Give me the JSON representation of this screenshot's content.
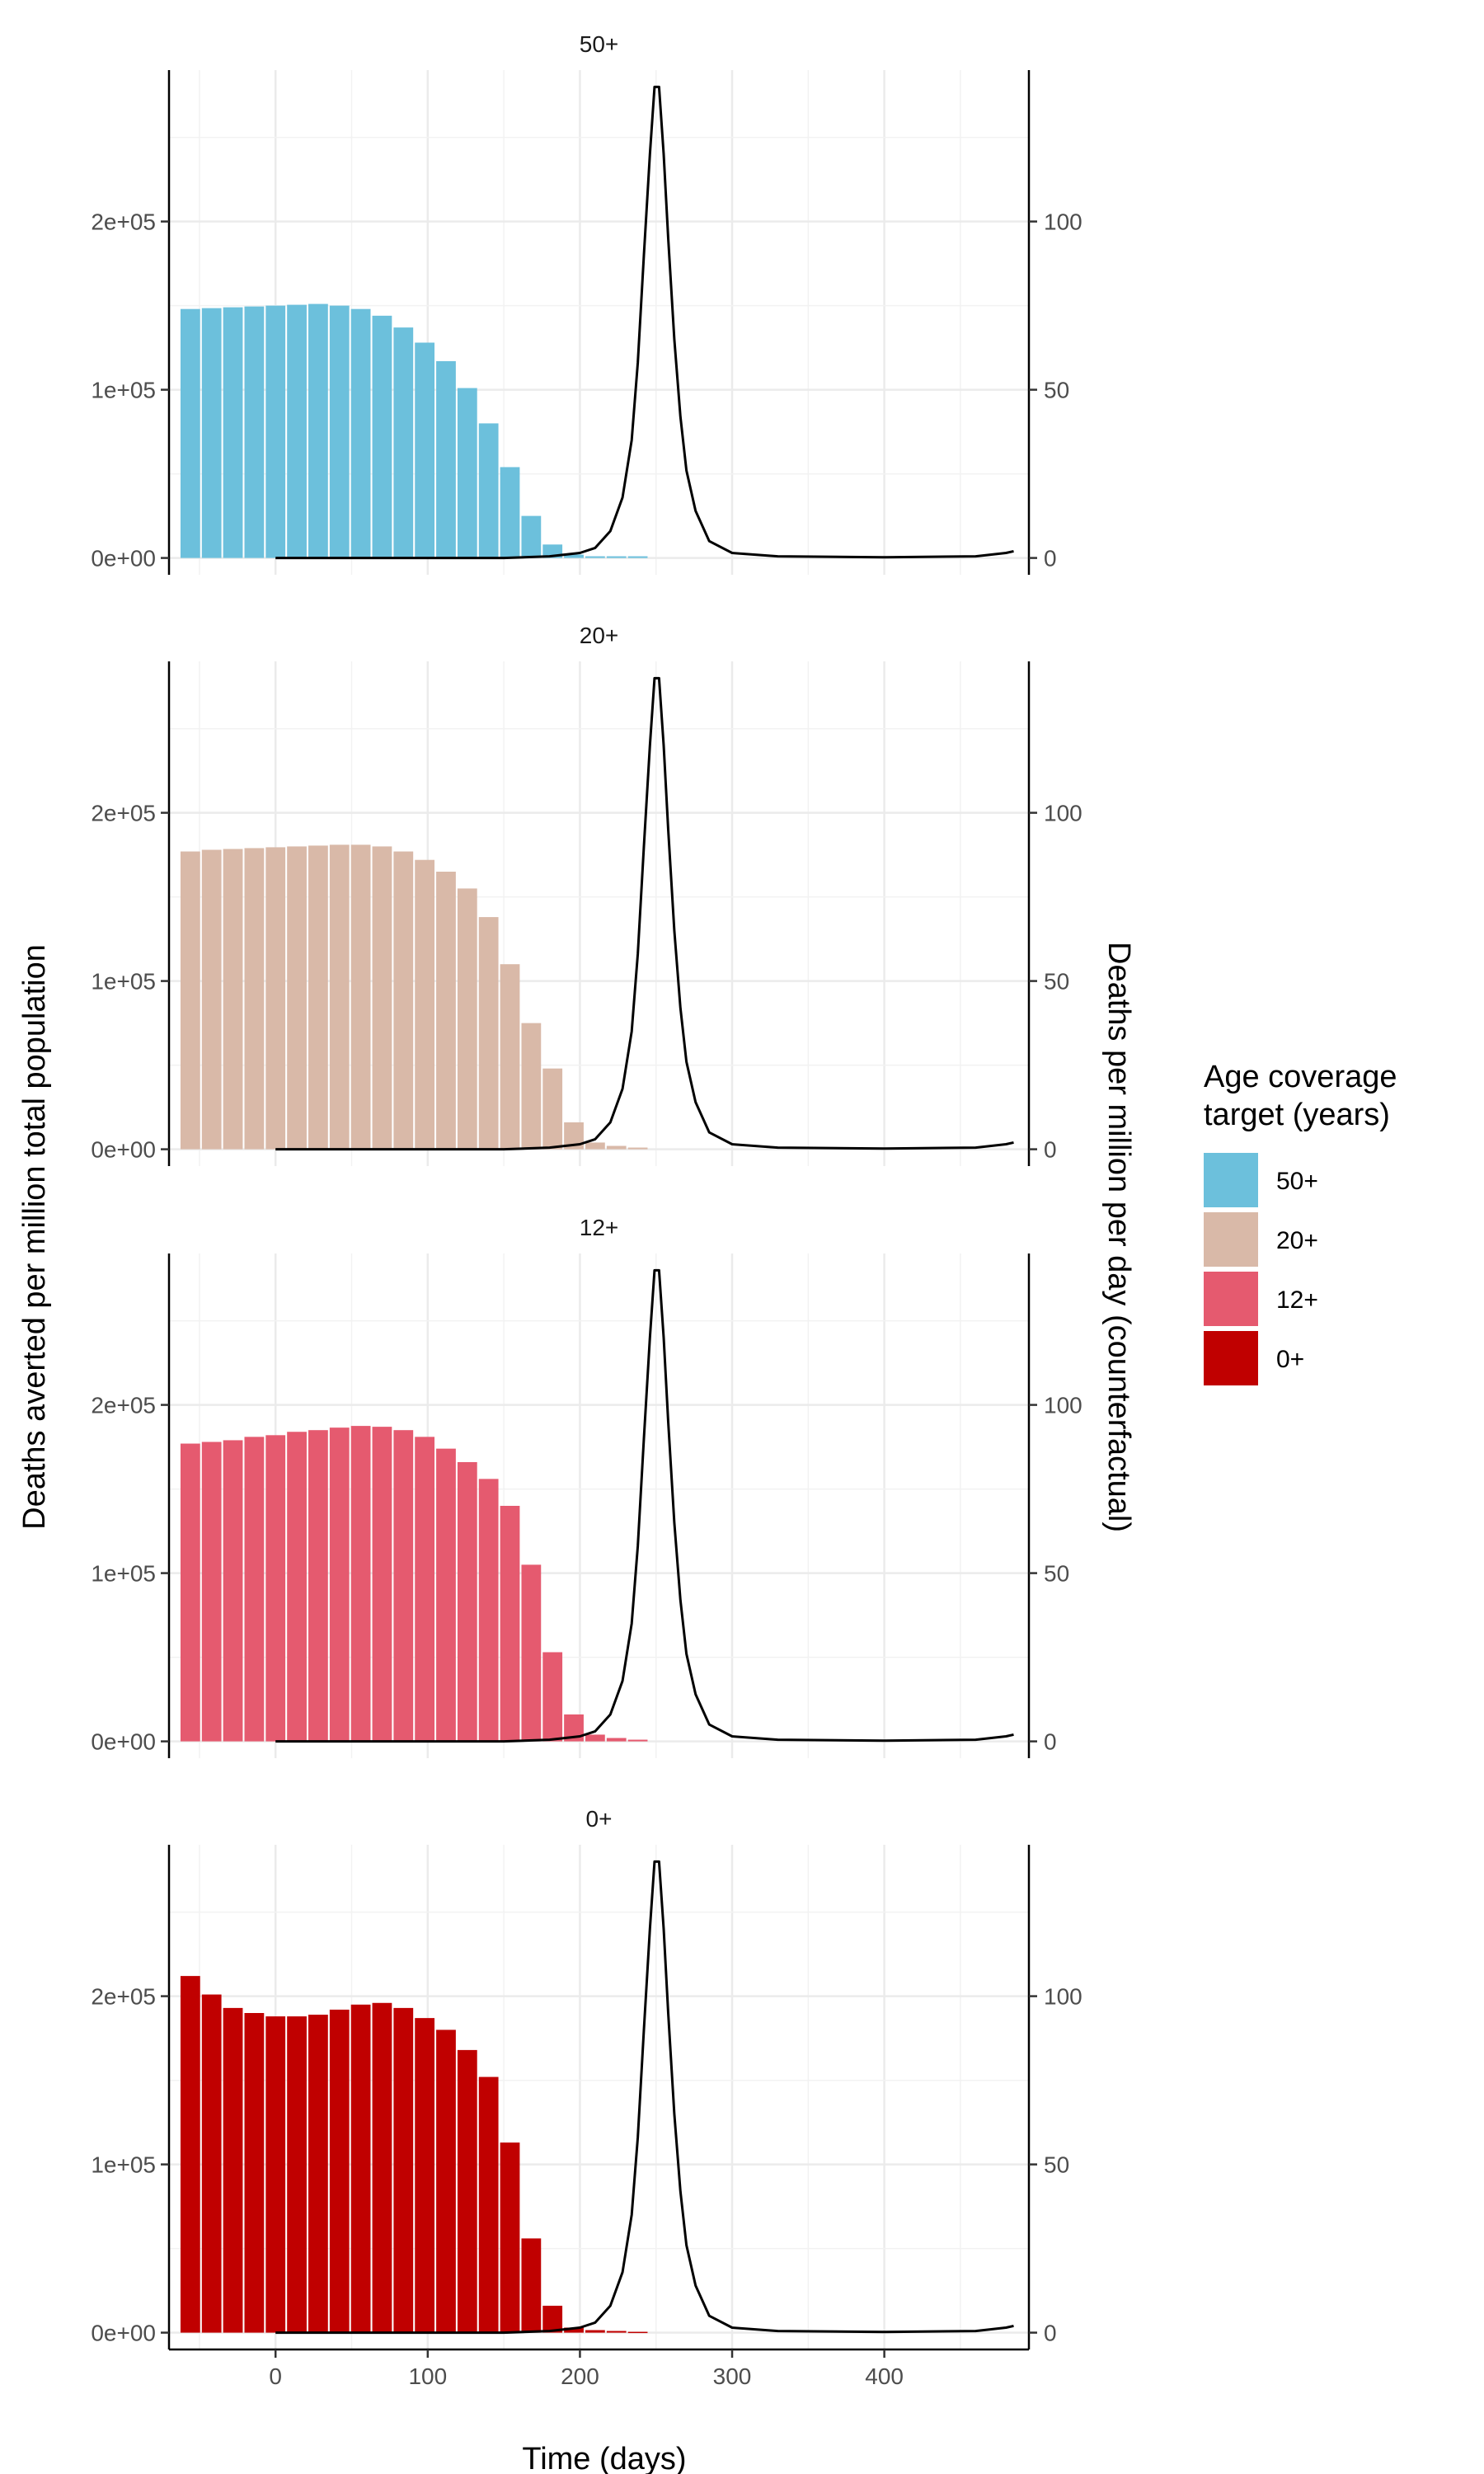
{
  "chart_data": {
    "type": "bar",
    "xlabel": "Time (days)",
    "ylabel": "Deaths averted per million total population",
    "ylabel_right": "Deaths per million per day (counterfactual)",
    "xlim": [
      -70,
      495
    ],
    "x_ticks": [
      0,
      100,
      200,
      300,
      400
    ],
    "x_tick_labels": [
      "0",
      "100",
      "200",
      "300",
      "400"
    ],
    "ylim": [
      -10000,
      290000
    ],
    "y_ticks": [
      0,
      100000,
      200000
    ],
    "y_tick_labels": [
      "0e+00",
      "1e+05",
      "2e+05"
    ],
    "ylim_right": [
      -5,
      145
    ],
    "y_ticks_right": [
      0,
      50,
      100
    ],
    "y_tick_labels_right": [
      "0",
      "50",
      "100"
    ],
    "grid": true,
    "legend": {
      "title": "Age coverage target (years)",
      "title_lines": [
        "Age coverage",
        "target (years)"
      ],
      "placement": "right",
      "entries": [
        {
          "label": "50+",
          "color": "#6CC0DC"
        },
        {
          "label": "20+",
          "color": "#D9B9A8"
        },
        {
          "label": "12+",
          "color": "#E55A6F"
        },
        {
          "label": "0+",
          "color": "#C00000"
        }
      ]
    },
    "bar_x": [
      -56,
      -42,
      -28,
      -14,
      0,
      14,
      28,
      42,
      56,
      70,
      84,
      98,
      112,
      126,
      140,
      154,
      168,
      182,
      196,
      210,
      224,
      238
    ],
    "panels": [
      {
        "title": "50+",
        "color": "#6CC0DC",
        "values": [
          148000,
          148500,
          149000,
          149500,
          150000,
          150500,
          151000,
          150000,
          148000,
          144000,
          137000,
          128000,
          117000,
          101000,
          80000,
          54000,
          25000,
          8000,
          2000,
          1000,
          1000,
          1000
        ]
      },
      {
        "title": "20+",
        "color": "#D9B9A8",
        "values": [
          177000,
          178000,
          178500,
          179000,
          179500,
          180000,
          180500,
          181000,
          181000,
          180000,
          177000,
          172000,
          165000,
          155000,
          138000,
          110000,
          75000,
          48000,
          16000,
          4000,
          2000,
          1000
        ]
      },
      {
        "title": "12+",
        "color": "#E55A6F",
        "values": [
          177000,
          178000,
          179000,
          181000,
          182000,
          184000,
          185000,
          186500,
          187500,
          187000,
          185000,
          181000,
          174000,
          166000,
          156000,
          140000,
          105000,
          53000,
          16000,
          4000,
          2000,
          1000
        ]
      },
      {
        "title": "0+",
        "color": "#C00000",
        "values": [
          212000,
          201000,
          193000,
          190000,
          188000,
          188000,
          189000,
          192000,
          195000,
          196000,
          193000,
          187000,
          180000,
          168000,
          152000,
          113000,
          56000,
          16000,
          3000,
          1500,
          1000,
          500
        ]
      }
    ],
    "counterfactual_line": {
      "x": [
        0,
        150,
        180,
        200,
        210,
        220,
        228,
        234,
        238,
        242,
        246,
        249,
        252,
        255,
        258,
        262,
        266,
        270,
        276,
        285,
        300,
        330,
        400,
        460,
        480,
        485
      ],
      "y": [
        0,
        0,
        0.5,
        1.5,
        3,
        8,
        18,
        35,
        58,
        90,
        120,
        140,
        140,
        120,
        95,
        65,
        42,
        26,
        14,
        5,
        1.5,
        0.5,
        0.2,
        0.5,
        1.5,
        2
      ]
    }
  }
}
